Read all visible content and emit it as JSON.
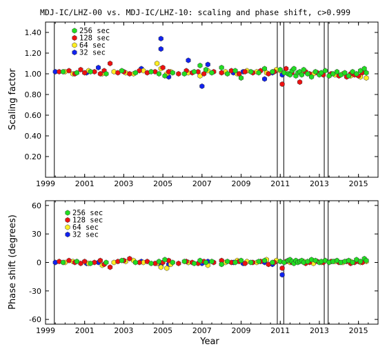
{
  "title": "MDJ-IC/LHZ-00 vs. MDJ-IC/LHZ-10: scaling and phase shift, c>0.999",
  "xlabel": "Year",
  "colors": {
    "256 sec": "#22dd22",
    "128 sec": "#ee1111",
    "64 sec": "#ffee22",
    "32 sec": "#1122ee"
  },
  "chart_data": [
    {
      "type": "scatter",
      "ylabel": "Scaling factor",
      "xlim": [
        1999,
        2016
      ],
      "ylim": [
        0.0,
        1.5
      ],
      "x_ticks": [
        1999,
        2001,
        2003,
        2005,
        2007,
        2009,
        2011,
        2013,
        2015
      ],
      "y_ticks": [
        0.2,
        0.4,
        0.6,
        0.8,
        1.0,
        1.2,
        1.4
      ],
      "y_tick_labels": [
        "0.20",
        "0.40",
        "0.60",
        "0.80",
        "1.00",
        "1.20",
        "1.40"
      ],
      "vertical_lines": [
        1999.45,
        2010.85,
        2011.18,
        2013.25,
        2013.45
      ],
      "legend": [
        "256 sec",
        "128 sec",
        " 64 sec",
        " 32 sec"
      ],
      "legend_position": "top-left",
      "series": [
        {
          "name": "256 sec",
          "x": [
            1999.9,
            2000.6,
            2001.3,
            2002.1,
            2002.9,
            2003.6,
            2004.4,
            2004.8,
            2005.1,
            2005.5,
            2006.1,
            2006.6,
            2006.9,
            2007.2,
            2007.5,
            2008.0,
            2008.3,
            2008.7,
            2009.0,
            2009.5,
            2009.9,
            2010.2,
            2010.6,
            2011.0,
            2011.2,
            2011.4,
            2011.5,
            2011.6,
            2011.7,
            2011.8,
            2011.9,
            2012.0,
            2012.1,
            2012.2,
            2012.4,
            2012.6,
            2012.8,
            2013.0,
            2013.1,
            2013.3,
            2013.5,
            2013.7,
            2013.9,
            2014.1,
            2014.3,
            2014.5,
            2014.7,
            2014.9,
            2015.1,
            2015.3,
            2015.4
          ],
          "y": [
            1.02,
            1.01,
            1.02,
            1.0,
            1.03,
            1.01,
            1.02,
            1.0,
            0.98,
            1.01,
            1.0,
            1.02,
            1.08,
            1.04,
            1.01,
            1.06,
            1.0,
            1.03,
            0.96,
            1.02,
            1.01,
            1.05,
            1.02,
            1.04,
            1.01,
            1.0,
            0.99,
            1.03,
            1.05,
            0.98,
            1.01,
            1.02,
            0.99,
            1.04,
            1.0,
            0.97,
            1.02,
            0.99,
            1.01,
            1.03,
            0.98,
            1.0,
            1.02,
            0.99,
            1.01,
            0.98,
            1.02,
            1.0,
            1.03,
            1.05,
            1.01
          ]
        },
        {
          "name": "128 sec",
          "x": [
            1999.7,
            2000.2,
            2000.5,
            2000.8,
            2001.0,
            2001.5,
            2001.8,
            2002.0,
            2002.3,
            2002.7,
            2003.0,
            2003.3,
            2003.8,
            2004.2,
            2004.6,
            2005.0,
            2005.3,
            2005.8,
            2006.2,
            2006.5,
            2006.8,
            2007.1,
            2007.6,
            2008.0,
            2008.5,
            2008.9,
            2009.2,
            2009.6,
            2010.0,
            2010.4,
            2010.7,
            2011.1,
            2011.3,
            2011.6,
            2012.0,
            2012.3,
            2012.5,
            2012.9,
            2013.2,
            2013.6,
            2014.0,
            2014.4,
            2014.6,
            2014.8,
            2015.0,
            2015.2
          ],
          "y": [
            1.02,
            1.03,
            1.0,
            1.04,
            1.01,
            1.02,
            1.0,
            1.03,
            1.1,
            1.01,
            1.02,
            1.0,
            1.03,
            1.01,
            1.02,
            1.06,
            1.02,
            1.0,
            1.03,
            1.01,
            1.02,
            1.0,
            1.02,
            1.01,
            1.03,
            1.0,
            1.02,
            1.01,
            1.03,
            1.0,
            1.02,
            0.9,
            1.05,
            1.01,
            0.92,
            1.02,
            1.0,
            1.01,
            0.99,
            1.0,
            0.98,
            0.97,
            1.0,
            0.99,
            0.98,
            1.01
          ]
        },
        {
          "name": "64 sec",
          "x": [
            2000.0,
            2000.4,
            2001.2,
            2001.9,
            2002.5,
            2003.1,
            2003.5,
            2004.0,
            2004.7,
            2004.9,
            2005.2,
            2005.4,
            2006.3,
            2006.9,
            2007.3,
            2008.2,
            2008.8,
            2009.3,
            2009.8,
            2010.3,
            2010.8,
            2011.0,
            2011.5,
            2012.2,
            2012.7,
            2013.1,
            2013.8,
            2014.2,
            2014.6,
            2015.1,
            2015.4
          ],
          "y": [
            1.02,
            1.0,
            1.03,
            1.0,
            1.02,
            1.01,
            1.0,
            1.03,
            1.1,
            1.05,
            1.0,
            1.02,
            1.01,
            0.98,
            1.03,
            1.02,
            1.0,
            1.03,
            1.02,
            1.01,
            1.04,
            1.03,
            1.0,
            1.02,
            1.0,
            1.01,
            0.99,
            1.0,
            0.98,
            0.97,
            0.96
          ]
        },
        {
          "name": "32 sec",
          "x": [
            1999.5,
            2001.1,
            2001.7,
            2003.9,
            2004.9,
            2004.9,
            2005.3,
            2006.3,
            2007.0,
            2007.3,
            2008.6,
            2009.1,
            2010.2,
            2010.6,
            2011.1
          ],
          "y": [
            1.02,
            1.01,
            1.06,
            1.05,
            1.34,
            1.24,
            0.97,
            1.13,
            0.88,
            1.09,
            1.01,
            1.02,
            0.95,
            1.01,
            0.99
          ]
        }
      ]
    },
    {
      "type": "scatter",
      "ylabel": "Phase shift (degrees)",
      "xlabel": "Year",
      "xlim": [
        1999,
        2016
      ],
      "ylim": [
        -65,
        65
      ],
      "x_ticks": [
        1999,
        2001,
        2003,
        2005,
        2007,
        2009,
        2011,
        2013,
        2015
      ],
      "y_ticks": [
        -60,
        -30,
        0,
        30,
        60
      ],
      "y_tick_labels": [
        "-60",
        "-30",
        "0",
        "30",
        "60"
      ],
      "vertical_lines": [
        1999.45,
        2010.85,
        2011.18,
        2013.25,
        2013.45
      ],
      "legend": [
        "256 sec",
        "128 sec",
        " 64 sec",
        " 32 sec"
      ],
      "legend_position": "top-left",
      "series": [
        {
          "name": "256 sec",
          "x": [
            1999.9,
            2000.6,
            2001.3,
            2002.1,
            2002.9,
            2003.6,
            2004.4,
            2004.8,
            2005.1,
            2005.5,
            2006.1,
            2006.6,
            2006.9,
            2007.2,
            2007.5,
            2008.0,
            2008.3,
            2008.7,
            2009.0,
            2009.5,
            2009.9,
            2010.2,
            2010.6,
            2011.0,
            2011.2,
            2011.4,
            2011.5,
            2011.6,
            2011.7,
            2011.8,
            2011.9,
            2012.0,
            2012.1,
            2012.2,
            2012.4,
            2012.6,
            2012.8,
            2013.0,
            2013.1,
            2013.3,
            2013.5,
            2013.7,
            2013.9,
            2014.1,
            2014.3,
            2014.5,
            2014.7,
            2014.9,
            2015.1,
            2015.3,
            2015.4
          ],
          "y": [
            0,
            1,
            -1,
            0,
            2,
            0,
            -1,
            1,
            3,
            0,
            1,
            -1,
            2,
            0,
            1,
            -2,
            1,
            0,
            2,
            0,
            1,
            2,
            0,
            1,
            0,
            2,
            3,
            1,
            -1,
            2,
            0,
            1,
            2,
            0,
            1,
            3,
            2,
            0,
            1,
            2,
            0,
            1,
            2,
            0,
            1,
            2,
            0,
            3,
            1,
            4,
            2
          ]
        },
        {
          "name": "128 sec",
          "x": [
            1999.7,
            2000.2,
            2000.5,
            2000.8,
            2001.0,
            2001.5,
            2001.8,
            2002.0,
            2002.3,
            2002.7,
            2003.0,
            2003.3,
            2003.8,
            2004.2,
            2004.6,
            2005.0,
            2005.3,
            2005.8,
            2006.2,
            2006.5,
            2006.8,
            2007.1,
            2007.6,
            2008.0,
            2008.5,
            2008.9,
            2009.2,
            2009.6,
            2010.0,
            2010.4,
            2010.7,
            2011.1,
            2011.3,
            2011.6,
            2012.0,
            2012.3,
            2012.5,
            2012.9,
            2013.2,
            2013.6,
            2014.0,
            2014.4,
            2014.6,
            2014.8,
            2015.0,
            2015.2
          ],
          "y": [
            1,
            2,
            0,
            -1,
            1,
            0,
            2,
            -2,
            -5,
            1,
            2,
            4,
            0,
            1,
            -1,
            0,
            2,
            -1,
            1,
            0,
            -1,
            1,
            0,
            2,
            0,
            1,
            -1,
            0,
            1,
            -2,
            0,
            -6,
            1,
            0,
            1,
            -1,
            0,
            1,
            0,
            1,
            0,
            1,
            -1,
            0,
            1,
            0
          ]
        },
        {
          "name": "64 sec",
          "x": [
            2000.0,
            2000.4,
            2001.2,
            2001.9,
            2002.5,
            2003.1,
            2003.5,
            2004.0,
            2004.7,
            2004.9,
            2005.2,
            2005.4,
            2006.3,
            2006.9,
            2007.3,
            2008.2,
            2008.8,
            2009.3,
            2009.8,
            2010.3,
            2010.8,
            2011.0,
            2011.5,
            2012.2,
            2012.7,
            2013.1,
            2013.8,
            2014.2,
            2014.6,
            2015.1,
            2015.4
          ],
          "y": [
            0,
            1,
            -1,
            -3,
            0,
            1,
            2,
            0,
            -1,
            -5,
            -6,
            -2,
            0,
            1,
            -3,
            0,
            2,
            1,
            0,
            3,
            2,
            1,
            0,
            1,
            -1,
            0,
            1,
            0,
            1,
            0,
            1
          ]
        },
        {
          "name": "32 sec",
          "x": [
            1999.5,
            2001.1,
            2001.7,
            2003.9,
            2004.9,
            2004.9,
            2005.3,
            2006.3,
            2007.0,
            2007.3,
            2008.6,
            2009.1,
            2010.2,
            2010.6,
            2011.1
          ],
          "y": [
            0,
            -1,
            0,
            1,
            -3,
            -4,
            -2,
            0,
            -1,
            1,
            0,
            -1,
            0,
            -2,
            -13
          ]
        }
      ]
    }
  ]
}
